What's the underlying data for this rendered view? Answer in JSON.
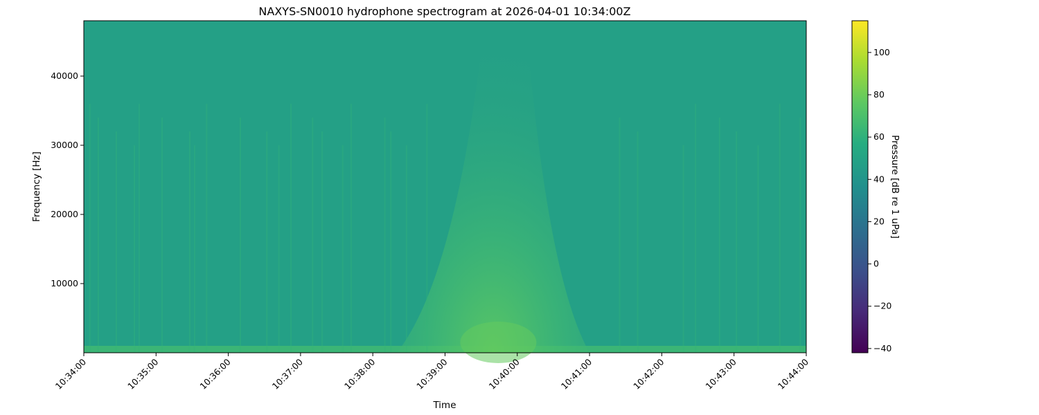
{
  "chart_data": {
    "type": "heatmap",
    "title": "NAXYS-SN0010 hydrophone spectrogram at 2026-04-01 10:34:00Z",
    "xlabel": "Time",
    "ylabel": "Frequency [Hz]",
    "x_ticks": [
      "10:34:00",
      "10:35:00",
      "10:36:00",
      "10:37:00",
      "10:38:00",
      "10:39:00",
      "10:40:00",
      "10:41:00",
      "10:42:00",
      "10:43:00",
      "10:44:00"
    ],
    "xlim": [
      "10:34:00",
      "10:44:00"
    ],
    "y_ticks": [
      10000,
      20000,
      30000,
      40000
    ],
    "ylim": [
      0,
      48000
    ],
    "colorbar": {
      "label": "Pressure [dB re 1 uPa]",
      "ticks": [
        -40,
        -20,
        0,
        20,
        40,
        60,
        80,
        100
      ],
      "range": [
        -42,
        115
      ],
      "colormap": "viridis"
    },
    "background_level_db": 48,
    "low_frequency_band": {
      "freq_hz": [
        0,
        1000
      ],
      "level_db": 68
    },
    "transient_event": {
      "center_time": "10:39:50",
      "start_time": "10:38:20",
      "end_time": "10:41:00",
      "peak_level_db": 72,
      "max_freq_hz": 48000
    },
    "impulse_times": [
      "10:34:05",
      "10:34:12",
      "10:34:27",
      "10:34:42",
      "10:34:46",
      "10:35:05",
      "10:35:28",
      "10:35:32",
      "10:35:42",
      "10:36:10",
      "10:36:32",
      "10:36:42",
      "10:36:52",
      "10:37:10",
      "10:37:18",
      "10:37:35",
      "10:37:42",
      "10:38:10",
      "10:38:15",
      "10:38:28",
      "10:38:45",
      "10:41:25",
      "10:41:40",
      "10:42:18",
      "10:42:28",
      "10:42:48",
      "10:43:02",
      "10:43:20",
      "10:43:38",
      "10:43:55"
    ],
    "impulse_level_db": 62,
    "grid": false,
    "legend": "colorbar-right"
  }
}
